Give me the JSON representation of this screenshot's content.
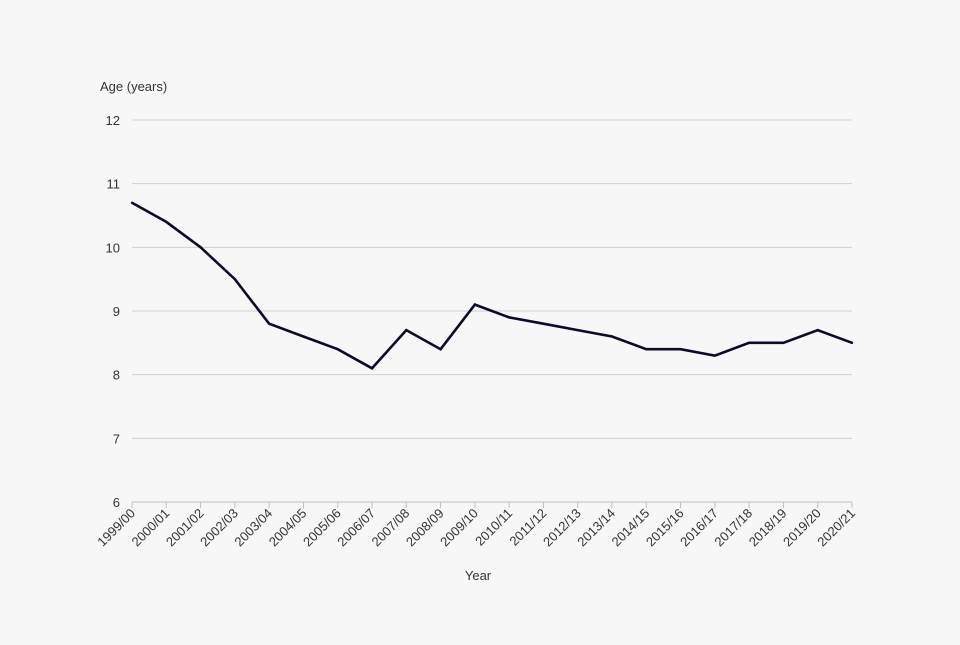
{
  "chart_data": {
    "type": "line",
    "title": "",
    "xlabel": "Year",
    "ylabel": "Age (years)",
    "ylim": [
      6,
      12
    ],
    "yticks": [
      6,
      7,
      8,
      9,
      10,
      11,
      12
    ],
    "grid": "horizontal",
    "legend": "none",
    "categories": [
      "1999/00",
      "2000/01",
      "2001/02",
      "2002/03",
      "2003/04",
      "2004/05",
      "2005/06",
      "2006/07",
      "2007/08",
      "2008/09",
      "2009/10",
      "2010/11",
      "2011/12",
      "2012/13",
      "2013/14",
      "2014/15",
      "2015/16",
      "2016/17",
      "2017/18",
      "2018/19",
      "2019/20",
      "2020/21"
    ],
    "series": [
      {
        "values": [
          10.7,
          10.4,
          10.0,
          9.5,
          8.8,
          8.6,
          8.4,
          8.1,
          8.7,
          8.4,
          9.1,
          8.9,
          8.8,
          8.7,
          8.6,
          8.4,
          8.4,
          8.3,
          8.5,
          8.5,
          8.7,
          8.5
        ],
        "color": "#0b0c2a"
      }
    ],
    "colors": {
      "gridline": "#cfcfcf",
      "axis": "#bfbfbf",
      "text": "#333333",
      "background": "#f7f7f7"
    }
  }
}
